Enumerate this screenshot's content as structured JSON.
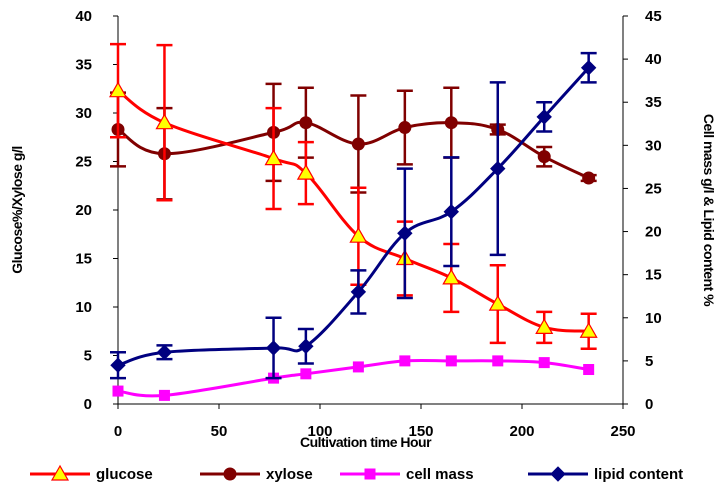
{
  "chart_data": {
    "type": "line",
    "xlabel": "Cultivation time Hour",
    "ylabel_left": "Glucose%/Xylose g/l",
    "ylabel_right": "Cell mass g/l & Lipid content %",
    "xlim": [
      0,
      250
    ],
    "ylim_left": [
      0,
      40
    ],
    "ylim_right": [
      0,
      45
    ],
    "x_ticks": [
      "0",
      "50",
      "100",
      "150",
      "200",
      "250"
    ],
    "y_left_ticks": [
      "0",
      "5",
      "10",
      "15",
      "20",
      "25",
      "30",
      "35",
      "40"
    ],
    "y_right_ticks": [
      "0",
      "5",
      "10",
      "15",
      "20",
      "25",
      "30",
      "35",
      "40",
      "45"
    ],
    "grid": false,
    "legend_position": "bottom",
    "series": [
      {
        "name": "glucose",
        "axis": "left",
        "color": "#ff0000",
        "marker": "triangle",
        "marker_color": "#ffff00",
        "x": [
          0,
          23,
          77,
          93,
          119,
          142,
          165,
          188,
          211,
          233
        ],
        "y": [
          32.3,
          29.0,
          25.3,
          23.8,
          17.3,
          15.0,
          13.0,
          10.3,
          7.9,
          7.5
        ],
        "err": [
          4.8,
          8.0,
          5.2,
          3.2,
          5.0,
          3.8,
          3.5,
          4.0,
          1.6,
          1.8
        ]
      },
      {
        "name": "xylose",
        "axis": "left",
        "color": "#800000",
        "marker": "circle",
        "marker_color": "#800000",
        "x": [
          0,
          23,
          77,
          93,
          119,
          142,
          165,
          188,
          211,
          233
        ],
        "y": [
          28.3,
          25.8,
          28.0,
          29.0,
          26.8,
          28.5,
          29.0,
          28.3,
          25.5,
          23.3
        ],
        "err": [
          3.8,
          4.7,
          5.0,
          3.6,
          5.0,
          3.8,
          3.6,
          0.5,
          1.0,
          0.3
        ]
      },
      {
        "name": "cell mass",
        "axis": "right",
        "color": "#ff00ff",
        "marker": "square",
        "marker_color": "#ff00ff",
        "x": [
          0,
          23,
          77,
          93,
          119,
          142,
          165,
          188,
          211,
          233
        ],
        "y": [
          1.5,
          1.0,
          3.0,
          3.5,
          4.3,
          5.0,
          5.0,
          5.0,
          4.8,
          4.0
        ],
        "err": [
          0,
          0,
          0,
          0,
          0,
          0,
          0,
          0,
          0,
          0
        ]
      },
      {
        "name": "lipid content",
        "axis": "right",
        "color": "#000080",
        "marker": "diamond",
        "marker_color": "#000080",
        "x": [
          0,
          23,
          77,
          93,
          119,
          142,
          165,
          188,
          211,
          233
        ],
        "y": [
          4.5,
          6.0,
          6.5,
          6.7,
          13.0,
          19.8,
          22.3,
          27.3,
          33.3,
          39.0
        ],
        "err": [
          1.5,
          0.8,
          3.5,
          2.0,
          2.5,
          7.5,
          6.3,
          10.0,
          1.7,
          1.7
        ]
      }
    ]
  }
}
